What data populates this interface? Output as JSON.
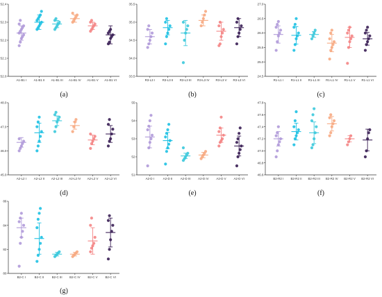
{
  "chart_data": [
    {
      "type": "scatter",
      "caption": "(a)",
      "categories": [
        "A1-B1 I",
        "A1-B1 II",
        "A1-B1 III",
        "A1-B1 IV",
        "A1-B1 V",
        "A1-B1 VI"
      ],
      "ylim": [
        52.0,
        52.4
      ],
      "yticks": [
        "52.0",
        "52.1",
        "52.2",
        "52.3",
        "52.4"
      ],
      "values": [
        [
          52.17,
          52.19,
          52.21,
          52.22,
          52.23,
          52.24,
          52.25,
          52.26,
          52.27,
          52.28,
          52.29,
          52.31
        ],
        [
          52.26,
          52.27,
          52.28,
          52.29,
          52.3,
          52.31,
          52.32,
          52.33,
          52.34,
          52.36
        ],
        [
          52.26,
          52.27,
          52.28,
          52.29,
          52.3,
          52.31,
          52.32
        ],
        [
          52.3,
          52.31,
          52.32,
          52.33,
          52.34,
          52.35
        ],
        [
          52.25,
          52.26,
          52.27,
          52.28,
          52.29,
          52.3,
          52.31
        ],
        [
          52.18,
          52.19,
          52.21,
          52.22,
          52.23,
          52.24,
          52.25,
          52.26
        ]
      ],
      "mean": [
        52.24,
        52.3,
        52.29,
        52.32,
        52.28,
        52.23
      ],
      "sd": [
        0.04,
        0.04,
        0.02,
        0.02,
        0.02,
        0.05
      ]
    },
    {
      "type": "scatter",
      "caption": "(b)",
      "categories": [
        "R3-L3 I",
        "R3-L3 II",
        "R3-L3 III",
        "R3-L3 IV",
        "R3-L3 V",
        "R3-L3 VI"
      ],
      "ylim": [
        33.5,
        35.5
      ],
      "yticks": [
        "33.5",
        "34.0",
        "34.5",
        "35.0",
        "35.5"
      ],
      "values": [
        [
          34.3,
          34.4,
          34.5,
          34.6,
          34.7,
          34.8,
          34.9
        ],
        [
          34.4,
          34.6,
          34.7,
          34.8,
          34.9,
          35.0,
          35.1
        ],
        [
          33.88,
          34.5,
          34.7,
          34.8,
          34.9,
          35.0
        ],
        [
          34.9,
          35.0,
          35.1,
          35.2,
          35.3
        ],
        [
          34.35,
          34.4,
          34.6,
          34.7,
          34.8,
          34.9,
          35.0
        ],
        [
          34.4,
          34.6,
          34.7,
          34.8,
          34.9,
          35.0,
          35.1
        ]
      ],
      "mean": [
        34.6,
        34.85,
        34.7,
        35.05,
        34.75,
        34.85
      ],
      "sd": [
        0.2,
        0.2,
        0.35,
        0.15,
        0.25,
        0.25
      ]
    },
    {
      "type": "scatter",
      "caption": "(c)",
      "categories": [
        "R1-L1 I",
        "R1-L1 II",
        "R1-L1 III",
        "R1-L1 IV",
        "R1-L1 V",
        "R1-L1 VI"
      ],
      "ylim": [
        24.5,
        27.0
      ],
      "yticks": [
        "24.5",
        "25.0",
        "25.5",
        "26.0",
        "26.5",
        "27.0"
      ],
      "values": [
        [
          25.4,
          25.7,
          25.9,
          26.0,
          26.1,
          26.2,
          26.3,
          26.4
        ],
        [
          25.4,
          25.6,
          25.8,
          25.9,
          26.0,
          26.2,
          26.3,
          26.5
        ],
        [
          25.8,
          25.9,
          26.0,
          26.1
        ],
        [
          25.1,
          25.4,
          25.5,
          25.6,
          25.7,
          25.8,
          26.0,
          26.1
        ],
        [
          24.95,
          25.5,
          25.7,
          25.8,
          25.9,
          26.0,
          26.1,
          26.2
        ],
        [
          25.4,
          25.6,
          25.7,
          25.8,
          25.9,
          26.0,
          26.1,
          26.2
        ]
      ],
      "mean": [
        25.95,
        25.92,
        25.95,
        25.65,
        25.85,
        25.8
      ],
      "sd": [
        0.3,
        0.3,
        0.1,
        0.3,
        0.35,
        0.22
      ]
    },
    {
      "type": "scatter",
      "caption": "(d)",
      "categories": [
        "A2-L2 I",
        "A2-L2 II",
        "A2-L2 III",
        "A2-L2 IV",
        "A2-L2 V",
        "A2-L2 VI"
      ],
      "ylim": [
        45.0,
        48.0
      ],
      "yticks": [
        "45.0",
        "46.0",
        "47.0",
        "48.0"
      ],
      "values": [
        [
          46.0,
          46.1,
          46.2,
          46.3,
          46.4,
          46.5
        ],
        [
          46.0,
          46.2,
          46.4,
          46.6,
          46.8,
          47.0,
          47.2,
          47.4
        ],
        [
          46.8,
          47.0,
          47.2,
          47.3,
          47.4,
          47.5,
          47.6
        ],
        [
          46.8,
          47.0,
          47.2,
          47.3
        ],
        [
          46.1,
          46.3,
          46.4,
          46.5,
          46.6,
          46.7
        ],
        [
          46.2,
          46.4,
          46.5,
          46.7,
          46.9,
          47.1,
          47.3
        ]
      ],
      "mean": [
        46.35,
        46.75,
        47.25,
        47.05,
        46.45,
        46.7
      ],
      "sd": [
        0.2,
        0.4,
        0.2,
        0.15,
        0.2,
        0.35
      ]
    },
    {
      "type": "scatter",
      "caption": "(e)",
      "categories": [
        "A2-D I",
        "A2-D II",
        "A2-D III",
        "A2-D IV",
        "A2-D V",
        "A2-D VI"
      ],
      "ylim": [
        51,
        55
      ],
      "yticks": [
        "51",
        "52",
        "53",
        "54",
        "55"
      ],
      "values": [
        [
          51.5,
          52.5,
          52.8,
          53.0,
          53.2,
          53.5,
          53.7,
          54.0,
          54.3
        ],
        [
          51.6,
          52.3,
          52.5,
          52.7,
          52.9,
          53.1,
          53.3,
          53.5,
          53.8
        ],
        [
          51.8,
          51.9,
          52.0,
          52.1,
          52.2,
          52.5
        ],
        [
          51.9,
          52.0,
          52.1,
          52.2,
          52.3
        ],
        [
          52.6,
          52.8,
          52.9,
          53.0,
          53.2,
          53.4,
          53.6,
          54.2
        ],
        [
          51.5,
          52.0,
          52.2,
          52.4,
          52.6,
          52.8,
          53.0,
          53.3,
          53.6
        ]
      ],
      "mean": [
        53.1,
        52.9,
        52.05,
        52.1,
        53.2,
        52.6
      ],
      "sd": [
        0.6,
        0.45,
        0.15,
        0.15,
        0.4,
        0.55
      ]
    },
    {
      "type": "scatter",
      "caption": "(f)",
      "categories": [
        "B2-R2 I",
        "B2-R2 II",
        "B2-R2 III",
        "B2-R2 IV",
        "B2-R2 V",
        "B2-R2 VI"
      ],
      "ylim": [
        46.6,
        47.8
      ],
      "yticks": [
        "46.6",
        "46.8",
        "47.0",
        "47.2",
        "47.4",
        "47.6",
        "47.8"
      ],
      "values": [
        [
          46.9,
          47.0,
          47.1,
          47.15,
          47.2,
          47.25,
          47.3,
          47.4
        ],
        [
          47.1,
          47.2,
          47.25,
          47.3,
          47.35,
          47.4,
          47.5,
          47.65
        ],
        [
          47.05,
          47.1,
          47.2,
          47.3,
          47.4,
          47.5,
          47.6,
          47.7
        ],
        [
          47.25,
          47.3,
          47.4,
          47.45,
          47.5,
          47.55,
          47.6
        ],
        [
          47.1,
          47.15,
          47.2,
          47.25
        ],
        [
          46.9,
          47.0,
          47.2,
          47.3,
          47.35
        ]
      ],
      "mean": [
        47.2,
        47.32,
        47.3,
        47.45,
        47.2,
        47.18
      ],
      "sd": [
        0.12,
        0.14,
        0.18,
        0.12,
        0.05,
        0.18
      ]
    },
    {
      "type": "scatter",
      "caption": "(g)",
      "categories": [
        "B2-C I",
        "B2-C II",
        "B2-C III",
        "B2-C IV",
        "B2-C V",
        "B2-C VI"
      ],
      "ylim": [
        80,
        86
      ],
      "yticks": [
        "80",
        "82",
        "84",
        "86"
      ],
      "values": [
        [
          80.6,
          82.5,
          83.0,
          83.5,
          84.0,
          84.3,
          84.6,
          85.0
        ],
        [
          81.0,
          81.5,
          82.0,
          82.5,
          83.0,
          83.8,
          84.5,
          85.0,
          85.4
        ],
        [
          81.4,
          81.5,
          81.6,
          81.7,
          81.8
        ],
        [
          81.4,
          81.5,
          81.6,
          81.7,
          81.8
        ],
        [
          81.8,
          82.1,
          82.3,
          82.5,
          83.0,
          84.0,
          84.6
        ],
        [
          81.2,
          82.0,
          82.8,
          83.5,
          84.0,
          84.4,
          84.8
        ]
      ],
      "mean": [
        83.8,
        82.9,
        81.6,
        81.6,
        82.7,
        83.4
      ],
      "sd": [
        0.8,
        1.3,
        0.15,
        0.15,
        1.1,
        1.2
      ]
    }
  ],
  "colors": [
    "#b09ad9",
    "#1ec1e3",
    "#3cc9dc",
    "#f7aa82",
    "#f48585",
    "#3a1f55"
  ]
}
